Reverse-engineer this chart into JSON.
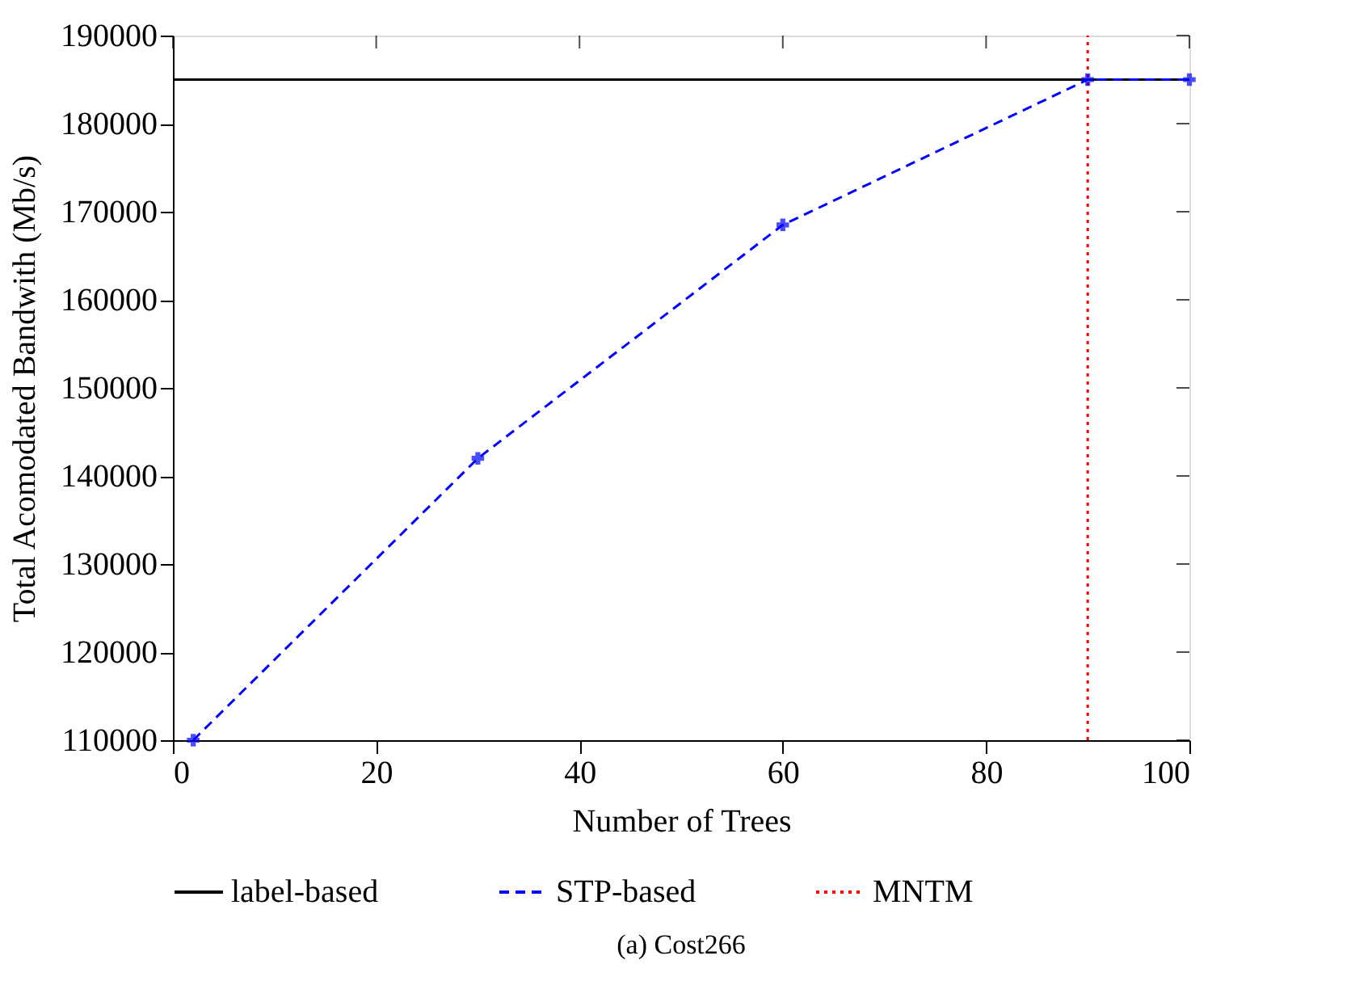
{
  "chart_data": {
    "type": "line",
    "xlabel": "Number of Trees",
    "ylabel": "Total Acomodated Bandwith (Mb/s)",
    "xlim": [
      0,
      100
    ],
    "xticks": [
      0,
      20,
      40,
      60,
      80,
      100
    ],
    "ylim": [
      110000,
      190000
    ],
    "yticks": [
      110000,
      120000,
      130000,
      140000,
      150000,
      160000,
      170000,
      180000,
      190000
    ],
    "grid": false,
    "legend": "bottom",
    "series": [
      {
        "name": "label-based",
        "color": "#000000",
        "line_style": "solid",
        "marker": "none",
        "x": [
          0,
          100
        ],
        "values": [
          185000,
          185000
        ]
      },
      {
        "name": "STP-based",
        "color": "#0000ff",
        "line_style": "dashed",
        "marker": "cross",
        "x": [
          2,
          30,
          60,
          90,
          100
        ],
        "values": [
          110000,
          142000,
          168500,
          185000,
          185000
        ]
      },
      {
        "name": "MNTM",
        "color": "#ff0000",
        "line_style": "dotted",
        "marker": "none",
        "x": [
          90,
          90
        ],
        "values": [
          110000,
          190000
        ]
      }
    ],
    "annotations": [
      "(a) Cost266"
    ]
  }
}
